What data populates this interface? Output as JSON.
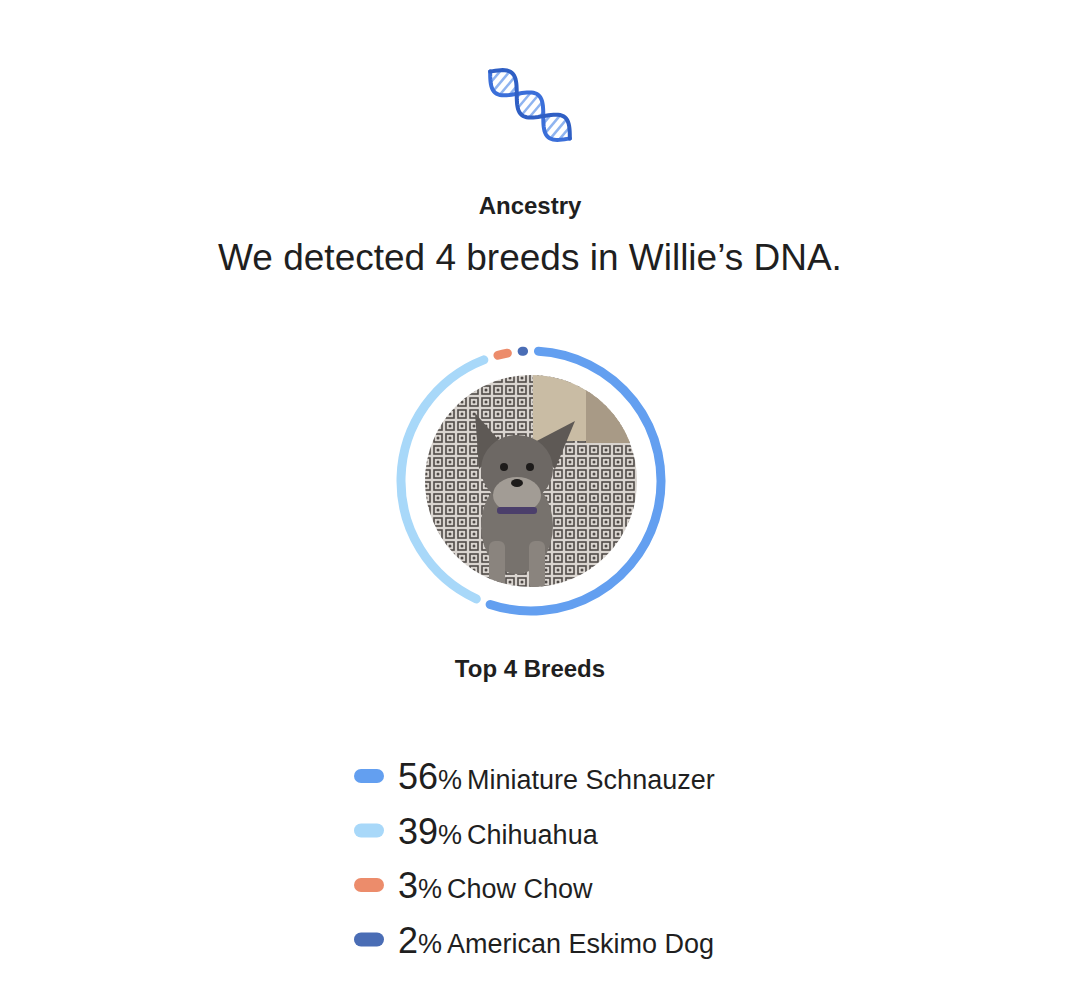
{
  "chart_data": {
    "type": "donut",
    "header": "Ancestry",
    "title": "We detected 4 breeds in Willie’s DNA.",
    "subtitle": "Top 4 Breeds",
    "categories": [
      "Miniature Schnauzer",
      "Chihuahua",
      "Chow Chow",
      "American Eskimo Dog"
    ],
    "values": [
      56,
      39,
      3,
      2
    ],
    "value_labels": [
      "56%",
      "39%",
      "3%",
      "2%"
    ],
    "colors": [
      "#639ff0",
      "#a8d8f9",
      "#ec8c6b",
      "#4a6db5"
    ],
    "legend": "bottom"
  }
}
